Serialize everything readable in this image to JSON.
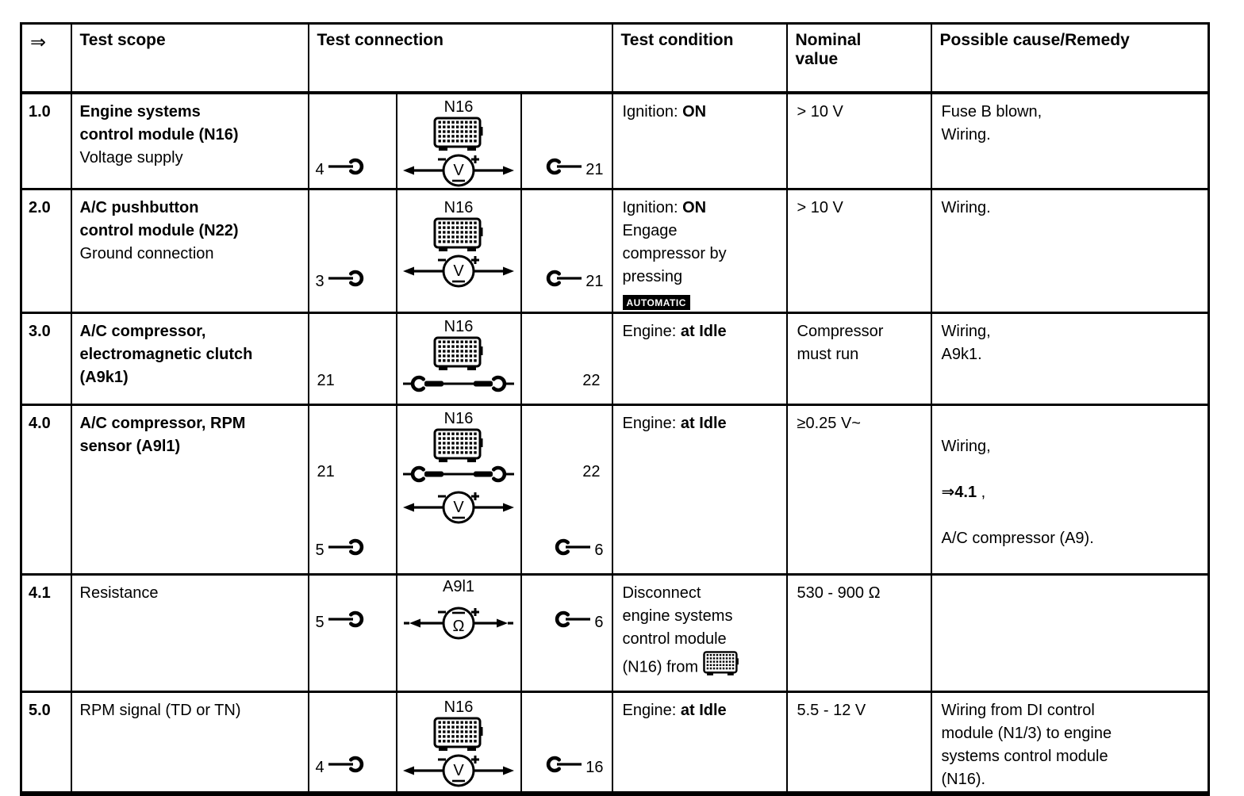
{
  "header": {
    "arrow": "⇒",
    "test_scope": "Test scope",
    "test_connection": "Test connection",
    "test_condition": "Test condition",
    "nominal_value": "Nominal\nvalue",
    "possible_cause": "Possible cause/Remedy"
  },
  "icons": {
    "voltmeter_letter": "V",
    "ohmmeter_letter": "Ω"
  },
  "rows": [
    {
      "id": "1.0",
      "title": "Engine systems\ncontrol module (N16)",
      "subtitle": "Voltage supply",
      "pin_left": "4",
      "pin_right": "21",
      "device": "N16",
      "cond_pre": "Ignition: ",
      "cond_bold": "ON",
      "nominal": "> 10 V",
      "remedy": "Fuse B blown,\nWiring."
    },
    {
      "id": "2.0",
      "title": "A/C pushbutton\ncontrol module (N22)",
      "subtitle": "Ground connection",
      "pin_left": "3",
      "pin_right": "21",
      "device": "N16",
      "cond_pre": "Ignition: ",
      "cond_bold": "ON",
      "cond_line2": "Engage\ncompressor by\npressing",
      "cond_badge": "AUTOMATIC",
      "nominal": "> 10 V",
      "remedy": "Wiring."
    },
    {
      "id": "3.0",
      "title": "A/C compressor,\nelectromagnetic clutch\n(A9k1)",
      "pin_left": "21",
      "pin_right": "22",
      "device": "N16",
      "cond_pre": "Engine: ",
      "cond_bold": "at Idle",
      "nominal": "Compressor\nmust run",
      "remedy": "Wiring,\nA9k1."
    },
    {
      "id": "4.0",
      "title": "A/C compressor, RPM\nsensor (A9l1)",
      "pin_left_top": "21",
      "pin_left": "5",
      "pin_right_top": "22",
      "pin_right": "6",
      "device": "N16",
      "cond_pre": "Engine: ",
      "cond_bold": "at Idle",
      "nominal": "≥0.25 V~",
      "remedy_line1": "Wiring,",
      "remedy_bold": "⇒4.1",
      "remedy_mid": " ,",
      "remedy_line3": "A/C compressor (A9)."
    },
    {
      "id": "4.1",
      "title": "Resistance",
      "pin_left": "5",
      "pin_right": "6",
      "device": "A9l1",
      "cond_text": "Disconnect\nengine systems\ncontrol module\n(N16) from",
      "nominal": "530 - 900 Ω",
      "remedy": ""
    },
    {
      "id": "5.0",
      "title": "RPM signal (TD or TN)",
      "pin_left": "4",
      "pin_right": "16",
      "device": "N16",
      "cond_pre": "Engine: ",
      "cond_bold": "at Idle",
      "nominal": "5.5 - 12 V",
      "remedy": "Wiring from DI control\nmodule (N1/3) to engine\nsystems control module\n(N16)."
    }
  ]
}
